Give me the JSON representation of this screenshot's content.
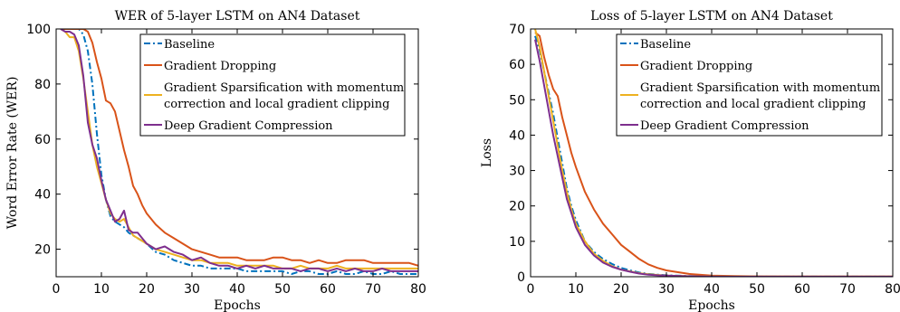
{
  "chart_data": [
    {
      "type": "line",
      "title": "WER of 5-layer LSTM on AN4 Dataset",
      "xlabel": "Epochs",
      "ylabel": "Word Error Rate (WER)",
      "xlim": [
        0,
        80
      ],
      "ylim": [
        10,
        100
      ],
      "xticks": [
        0,
        10,
        20,
        30,
        40,
        50,
        60,
        70,
        80
      ],
      "yticks": [
        20,
        40,
        60,
        80,
        100
      ],
      "grid": false,
      "legend_position": "top-right",
      "series": [
        {
          "name": "Baseline",
          "color": "#0072BD",
          "dash": "dashdot",
          "x": [
            1,
            2,
            3,
            4,
            5,
            6,
            7,
            8,
            9,
            10,
            11,
            12,
            13,
            14,
            15,
            16,
            17,
            18,
            19,
            20,
            22,
            24,
            26,
            28,
            30,
            32,
            34,
            36,
            38,
            40,
            42,
            44,
            46,
            48,
            50,
            52,
            54,
            56,
            58,
            60,
            62,
            64,
            66,
            68,
            70,
            72,
            74,
            76,
            78,
            80
          ],
          "y": [
            100,
            100,
            100,
            100,
            100,
            98,
            92,
            80,
            62,
            47,
            38,
            32,
            30,
            29,
            28,
            26,
            25,
            24,
            23,
            22,
            19,
            18,
            16,
            15,
            14,
            14,
            13,
            13,
            13,
            13,
            12,
            12,
            12,
            12,
            12,
            11,
            12,
            12,
            11,
            11,
            12,
            11,
            11,
            12,
            11,
            11,
            12,
            11,
            11,
            11
          ]
        },
        {
          "name": "Gradient Dropping",
          "color": "#D95319",
          "dash": "solid",
          "x": [
            1,
            2,
            3,
            4,
            5,
            6,
            7,
            8,
            9,
            10,
            11,
            12,
            13,
            14,
            15,
            16,
            17,
            18,
            19,
            20,
            22,
            24,
            26,
            28,
            30,
            32,
            34,
            36,
            38,
            40,
            42,
            44,
            46,
            48,
            50,
            52,
            54,
            56,
            58,
            60,
            62,
            64,
            66,
            68,
            70,
            72,
            74,
            76,
            78,
            80
          ],
          "y": [
            100,
            100,
            100,
            100,
            100,
            100,
            99,
            95,
            88,
            82,
            74,
            73,
            70,
            63,
            56,
            50,
            43,
            40,
            36,
            33,
            29,
            26,
            24,
            22,
            20,
            19,
            18,
            17,
            17,
            17,
            16,
            16,
            16,
            17,
            17,
            16,
            16,
            15,
            16,
            15,
            15,
            16,
            16,
            16,
            15,
            15,
            15,
            15,
            15,
            14
          ]
        },
        {
          "name": "Gradient Sparsification with momentum correction and local gradient clipping",
          "color": "#EDB120",
          "dash": "solid",
          "x": [
            1,
            2,
            3,
            4,
            5,
            6,
            7,
            8,
            9,
            10,
            11,
            12,
            13,
            14,
            15,
            16,
            17,
            18,
            19,
            20,
            22,
            24,
            26,
            28,
            30,
            32,
            34,
            36,
            38,
            40,
            42,
            44,
            46,
            48,
            50,
            52,
            54,
            56,
            58,
            60,
            62,
            64,
            66,
            68,
            70,
            72,
            74,
            76,
            78,
            80
          ],
          "y": [
            100,
            99,
            97,
            97,
            92,
            82,
            70,
            58,
            50,
            44,
            38,
            33,
            31,
            30,
            31,
            28,
            25,
            24,
            23,
            22,
            20,
            19,
            18,
            17,
            16,
            16,
            15,
            15,
            15,
            14,
            14,
            14,
            14,
            14,
            13,
            13,
            14,
            13,
            13,
            13,
            14,
            13,
            13,
            13,
            13,
            13,
            13,
            13,
            13,
            13
          ]
        },
        {
          "name": "Deep Gradient Compression",
          "color": "#7E2F8E",
          "dash": "solid",
          "x": [
            1,
            2,
            3,
            4,
            5,
            6,
            7,
            8,
            9,
            10,
            11,
            12,
            13,
            14,
            15,
            16,
            17,
            18,
            19,
            20,
            22,
            24,
            26,
            28,
            30,
            32,
            34,
            36,
            38,
            40,
            42,
            44,
            46,
            48,
            50,
            52,
            54,
            56,
            58,
            60,
            62,
            64,
            66,
            68,
            70,
            72,
            74,
            76,
            78,
            80
          ],
          "y": [
            100,
            99,
            99,
            98,
            94,
            83,
            66,
            58,
            53,
            45,
            38,
            34,
            30,
            31,
            34,
            27,
            26,
            26,
            24,
            22,
            20,
            21,
            19,
            18,
            16,
            17,
            15,
            14,
            14,
            13,
            14,
            13,
            14,
            13,
            13,
            13,
            12,
            13,
            13,
            12,
            13,
            12,
            13,
            12,
            12,
            13,
            12,
            12,
            12,
            12
          ]
        }
      ]
    },
    {
      "type": "line",
      "title": "Loss of 5-layer LSTM on AN4 Dataset",
      "xlabel": "Epochs",
      "ylabel": "Loss",
      "xlim": [
        0,
        80
      ],
      "ylim": [
        0,
        70
      ],
      "xticks": [
        0,
        10,
        20,
        30,
        40,
        50,
        60,
        70,
        80
      ],
      "yticks": [
        0,
        10,
        20,
        30,
        40,
        50,
        60,
        70
      ],
      "grid": false,
      "legend_position": "top-right",
      "series": [
        {
          "name": "Baseline",
          "color": "#0072BD",
          "dash": "dashdot",
          "x": [
            1,
            2,
            3,
            4,
            5,
            6,
            7,
            8,
            9,
            10,
            12,
            14,
            16,
            18,
            20,
            22,
            24,
            26,
            28,
            30,
            35,
            40,
            45,
            50,
            60,
            70,
            80
          ],
          "y": [
            68,
            64,
            58,
            52,
            46,
            39,
            32,
            25,
            20,
            16,
            10,
            7,
            5,
            3.6,
            2.5,
            1.8,
            1.2,
            0.8,
            0.6,
            0.4,
            0.2,
            0.1,
            0.05,
            0.02,
            0.02,
            0.02,
            0.02
          ]
        },
        {
          "name": "Gradient Dropping",
          "color": "#D95319",
          "dash": "solid",
          "x": [
            1,
            2,
            3,
            4,
            5,
            6,
            7,
            8,
            9,
            10,
            12,
            14,
            16,
            18,
            20,
            22,
            24,
            26,
            28,
            30,
            35,
            40,
            45,
            50,
            60,
            70,
            80
          ],
          "y": [
            69,
            68,
            62,
            57,
            53,
            51,
            45,
            40,
            35,
            31,
            24,
            19,
            15,
            12,
            9,
            7,
            5,
            3.5,
            2.5,
            1.8,
            0.8,
            0.3,
            0.2,
            0.1,
            0.05,
            0.05,
            0.05
          ]
        },
        {
          "name": "Gradient Sparsification with momentum correction and local gradient clipping",
          "color": "#EDB120",
          "dash": "solid",
          "x": [
            1,
            2,
            3,
            4,
            5,
            6,
            7,
            8,
            9,
            10,
            12,
            14,
            16,
            18,
            20,
            22,
            24,
            26,
            28,
            30,
            35,
            40,
            45,
            50,
            60,
            70,
            80
          ],
          "y": [
            70,
            65,
            58,
            51,
            44,
            37,
            30,
            24,
            19,
            15,
            10,
            6.5,
            4.5,
            3,
            2,
            1.5,
            1,
            0.7,
            0.5,
            0.3,
            0.15,
            0.1,
            0.05,
            0.02,
            0.02,
            0.02,
            0.02
          ]
        },
        {
          "name": "Deep Gradient Compression",
          "color": "#7E2F8E",
          "dash": "solid",
          "x": [
            1,
            2,
            3,
            4,
            5,
            6,
            7,
            8,
            9,
            10,
            12,
            14,
            16,
            18,
            20,
            22,
            24,
            26,
            28,
            30,
            35,
            40,
            45,
            50,
            60,
            70,
            80
          ],
          "y": [
            67,
            61,
            54,
            47,
            40,
            34,
            28,
            22,
            18,
            14,
            9,
            6,
            4,
            2.8,
            2,
            1.4,
            0.9,
            0.6,
            0.4,
            0.3,
            0.12,
            0.05,
            0.03,
            0.02,
            0.02,
            0.02,
            0.02
          ]
        }
      ]
    }
  ]
}
